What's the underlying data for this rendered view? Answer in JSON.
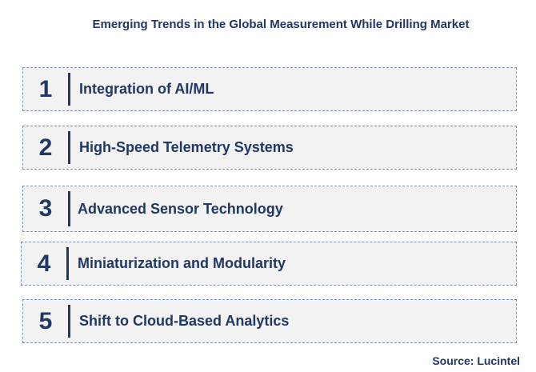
{
  "title": "Emerging Trends in the Global Measurement While Drilling Market",
  "trends": [
    {
      "number": "1",
      "label": "Integration of AI/ML"
    },
    {
      "number": "2",
      "label": "High-Speed Telemetry Systems"
    },
    {
      "number": "3",
      "label": "Advanced Sensor Technology"
    },
    {
      "number": "4",
      "label": "Miniaturization and Modularity"
    },
    {
      "number": "5",
      "label": "Shift to Cloud-Based Analytics"
    }
  ],
  "source": "Source: Lucintel",
  "colors": {
    "text": "#1f3864",
    "box_fill": "#f2f2f2",
    "box_border": "#7f96b2"
  }
}
